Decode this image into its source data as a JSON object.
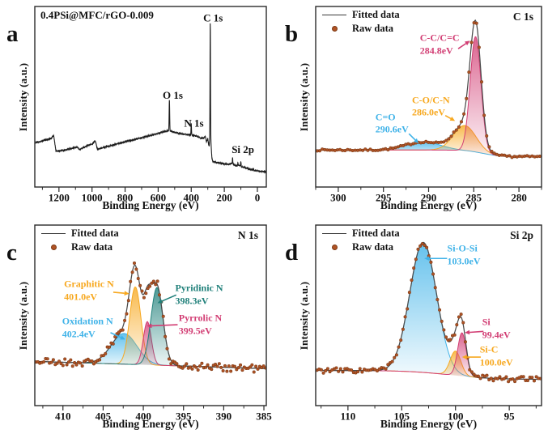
{
  "colors": {
    "blue": "#3eb2e8",
    "orange": "#f7a81f",
    "pink": "#d23e74",
    "teal": "#20807a",
    "raw_dot": "#b05325",
    "raw_dot_edge": "#7d3a15",
    "fitted": "#4a4a4a",
    "axis": "#2a2a2a",
    "black_line": "#1b1b1b"
  },
  "chart_data": [
    {
      "id": "a",
      "letter": "a",
      "type": "line",
      "title_inside": "0.4PSi@MFC/rGO-0.009",
      "xlabel": "Binding Energy (eV)",
      "ylabel": "Intensity (a.u.)",
      "x_range": [
        1346,
        -54
      ],
      "major_ticks": [
        1200,
        1000,
        800,
        600,
        400,
        200,
        0
      ],
      "minor_step": 100,
      "peak_labels": [
        {
          "text": "C 1s",
          "fx": 0.77,
          "fy": 0.916
        },
        {
          "text": "O 1s",
          "fx": 0.596,
          "fy": 0.489
        },
        {
          "text": "N 1s",
          "fx": 0.687,
          "fy": 0.335
        },
        {
          "text": "Si 2p",
          "fx": 0.899,
          "fy": 0.189
        }
      ],
      "survey": {
        "anchors": [
          [
            1346,
            0.245
          ],
          [
            1250,
            0.268
          ],
          [
            1232,
            0.286
          ],
          [
            1218,
            0.198
          ],
          [
            1160,
            0.205
          ],
          [
            1090,
            0.222
          ],
          [
            1078,
            0.208
          ],
          [
            1000,
            0.238
          ],
          [
            980,
            0.256
          ],
          [
            968,
            0.21
          ],
          [
            900,
            0.226
          ],
          [
            800,
            0.25
          ],
          [
            700,
            0.273
          ],
          [
            600,
            0.297
          ],
          [
            560,
            0.308
          ],
          [
            545,
            0.312
          ],
          [
            520,
            0.308
          ],
          [
            470,
            0.296
          ],
          [
            430,
            0.291
          ],
          [
            400,
            0.289
          ],
          [
            370,
            0.283
          ],
          [
            345,
            0.272
          ],
          [
            325,
            0.272
          ],
          [
            315,
            0.279
          ],
          [
            308,
            0.252
          ],
          [
            300,
            0.268
          ],
          [
            295,
            0.238
          ],
          [
            291,
            0.228
          ],
          [
            288,
            0.268
          ],
          [
            286,
            0.29
          ],
          [
            283,
            0.27
          ],
          [
            281,
            0.25
          ],
          [
            279,
            0.22
          ],
          [
            275,
            0.16
          ],
          [
            270,
            0.142
          ],
          [
            240,
            0.134
          ],
          [
            200,
            0.128
          ],
          [
            170,
            0.126
          ],
          [
            150,
            0.131
          ],
          [
            140,
            0.122
          ],
          [
            125,
            0.118
          ],
          [
            108,
            0.121
          ],
          [
            95,
            0.114
          ],
          [
            75,
            0.107
          ],
          [
            40,
            0.097
          ],
          [
            0,
            0.089
          ],
          [
            -54,
            0.084
          ]
        ],
        "peaks": [
          {
            "c": 532,
            "a": 0.175,
            "s": 1.6
          },
          {
            "c": 400,
            "a": 0.062,
            "s": 1.4
          },
          {
            "c": 285,
            "a": 0.635,
            "s": 1.4
          },
          {
            "c": 150,
            "a": 0.03,
            "s": 1.2
          },
          {
            "c": 118,
            "a": 0.014,
            "s": 1.1
          },
          {
            "c": 100,
            "a": 0.026,
            "s": 1.2
          },
          {
            "c": 25,
            "a": 0.012,
            "s": 1.5
          }
        ]
      },
      "noise": 0.0035,
      "seed": 13
    },
    {
      "id": "b",
      "letter": "b",
      "type": "fitted_peaks",
      "corner_label": "C 1s",
      "legend": {
        "fitted": "Fitted data",
        "raw": "Raw data"
      },
      "xlabel": "Binding Energy (eV)",
      "ylabel": "Intensity (a.u.)",
      "x_range": [
        302.5,
        277.5
      ],
      "major_ticks": [
        300,
        295,
        290,
        285,
        280
      ],
      "minor_step": 2.5,
      "baseline": {
        "mode": "step",
        "left": 0.205,
        "right": 0.168,
        "center": 284.0,
        "width": 1.0
      },
      "components": [
        {
          "name": "C=O",
          "energy": "290.6eV",
          "center": 290.6,
          "amp": 0.045,
          "sigma": 1.9,
          "color": "blue"
        },
        {
          "name": "C-O/C-N",
          "energy": "286.0eV",
          "center": 286.0,
          "amp": 0.14,
          "sigma": 1.25,
          "color": "orange"
        },
        {
          "name": "C-C/C=C",
          "energy": "284.8eV",
          "center": 284.8,
          "amp": 0.64,
          "sigma": 0.6,
          "color": "pink"
        }
      ],
      "annotations": [
        {
          "lines": [
            "C-C/C=C",
            "284.8eV"
          ],
          "color": "pink",
          "fx": 0.549,
          "fy": 0.789,
          "arrow": [
            0.631,
            0.766,
            0.683,
            0.81
          ]
        },
        {
          "lines": [
            "C-O/C-N",
            "286.0eV"
          ],
          "color": "orange",
          "fx": 0.51,
          "fy": 0.445,
          "arrow": [
            0.574,
            0.396,
            0.617,
            0.366
          ]
        },
        {
          "lines": [
            "C=O",
            "290.6eV"
          ],
          "color": "blue",
          "fx": 0.338,
          "fy": 0.352,
          "arrow": [
            0.413,
            0.295,
            0.456,
            0.242
          ]
        }
      ],
      "dots_step": 0.28,
      "noise": 0.005,
      "seed": 7
    },
    {
      "id": "c",
      "letter": "c",
      "type": "fitted_peaks",
      "corner_label": "N 1s",
      "legend": {
        "fitted": "Fitted data",
        "raw": "Raw data"
      },
      "xlabel": "Binding Energy (eV)",
      "ylabel": "Intensity (a.u.)",
      "x_range": [
        413.5,
        384.7
      ],
      "major_ticks": [
        410,
        405,
        400,
        395,
        390,
        385
      ],
      "minor_step": 2.5,
      "baseline": {
        "mode": "linear",
        "left": 0.245,
        "right": 0.205
      },
      "components": [
        {
          "name": "Oxidation N",
          "energy": "402.4eV",
          "center": 402.4,
          "amp": 0.17,
          "sigma": 1.6,
          "color": "blue"
        },
        {
          "name": "Graphitic N",
          "energy": "401.0eV",
          "center": 401.0,
          "amp": 0.43,
          "sigma": 0.7,
          "color": "orange"
        },
        {
          "name": "Pyrrolic N",
          "energy": "399.5eV",
          "center": 399.5,
          "amp": 0.24,
          "sigma": 0.5,
          "color": "pink"
        },
        {
          "name": "Pyridinic N",
          "energy": "398.3eV",
          "center": 398.3,
          "amp": 0.43,
          "sigma": 0.75,
          "color": "teal"
        }
      ],
      "annotations": [
        {
          "lines": [
            "Graphitic N",
            "401.0eV"
          ],
          "color": "orange",
          "fx": 0.234,
          "fy": 0.635,
          "arrow": [
            0.339,
            0.628,
            0.408,
            0.62
          ]
        },
        {
          "lines": [
            "Oxidation N",
            "402.4eV"
          ],
          "color": "blue",
          "fx": 0.228,
          "fy": 0.43,
          "arrow": [
            0.327,
            0.404,
            0.391,
            0.366
          ]
        },
        {
          "lines": [
            "Pyridinic N",
            "398.3eV"
          ],
          "color": "teal",
          "fx": 0.71,
          "fy": 0.613,
          "arrow": [
            0.611,
            0.613,
            0.53,
            0.568
          ]
        },
        {
          "lines": [
            "Pyrrolic N",
            "399.5eV"
          ],
          "color": "pink",
          "fx": 0.715,
          "fy": 0.447,
          "arrow": [
            0.617,
            0.448,
            0.484,
            0.441
          ]
        }
      ],
      "dots_step": 0.24,
      "noise": 0.022,
      "seed": 21
    },
    {
      "id": "d",
      "letter": "d",
      "type": "fitted_peaks",
      "corner_label": "Si 2p",
      "legend": {
        "fitted": "Fitted data",
        "raw": "Raw data"
      },
      "xlabel": "Binding Energy (eV)",
      "ylabel": "Intensity (a.u.)",
      "x_range": [
        113,
        92
      ],
      "major_ticks": [
        110,
        105,
        100,
        95
      ],
      "minor_step": 2.5,
      "baseline": {
        "mode": "step",
        "left": 0.195,
        "right": 0.145,
        "center": 100.5,
        "width": 2.0
      },
      "components": [
        {
          "name": "Si-O-Si",
          "energy": "103.0eV",
          "center": 103.0,
          "amp": 0.72,
          "sigma": 1.25,
          "color": "blue"
        },
        {
          "name": "Si-C",
          "energy": "100.0eV",
          "center": 100.0,
          "amp": 0.135,
          "sigma": 0.5,
          "color": "orange"
        },
        {
          "name": "Si",
          "energy": "99.4eV",
          "center": 99.4,
          "amp": 0.24,
          "sigma": 0.4,
          "color": "pink"
        }
      ],
      "annotations": [
        {
          "lines": [
            "Si-O-Si",
            "103.0eV"
          ],
          "color": "blue",
          "fx": 0.656,
          "fy": 0.833,
          "arrow": [
            0.582,
            0.815,
            0.481,
            0.815
          ]
        },
        {
          "lines": [
            "Si",
            "99.4eV"
          ],
          "color": "pink",
          "fx": 0.8,
          "fy": 0.426,
          "arrow": [
            0.743,
            0.411,
            0.66,
            0.404
          ]
        },
        {
          "lines": [
            "Si-C",
            "100.0eV"
          ],
          "color": "orange",
          "fx": 0.8,
          "fy": 0.272,
          "arrow": [
            0.731,
            0.269,
            0.648,
            0.269
          ]
        }
      ],
      "dots_step": 0.2,
      "noise": 0.015,
      "seed": 33
    }
  ]
}
